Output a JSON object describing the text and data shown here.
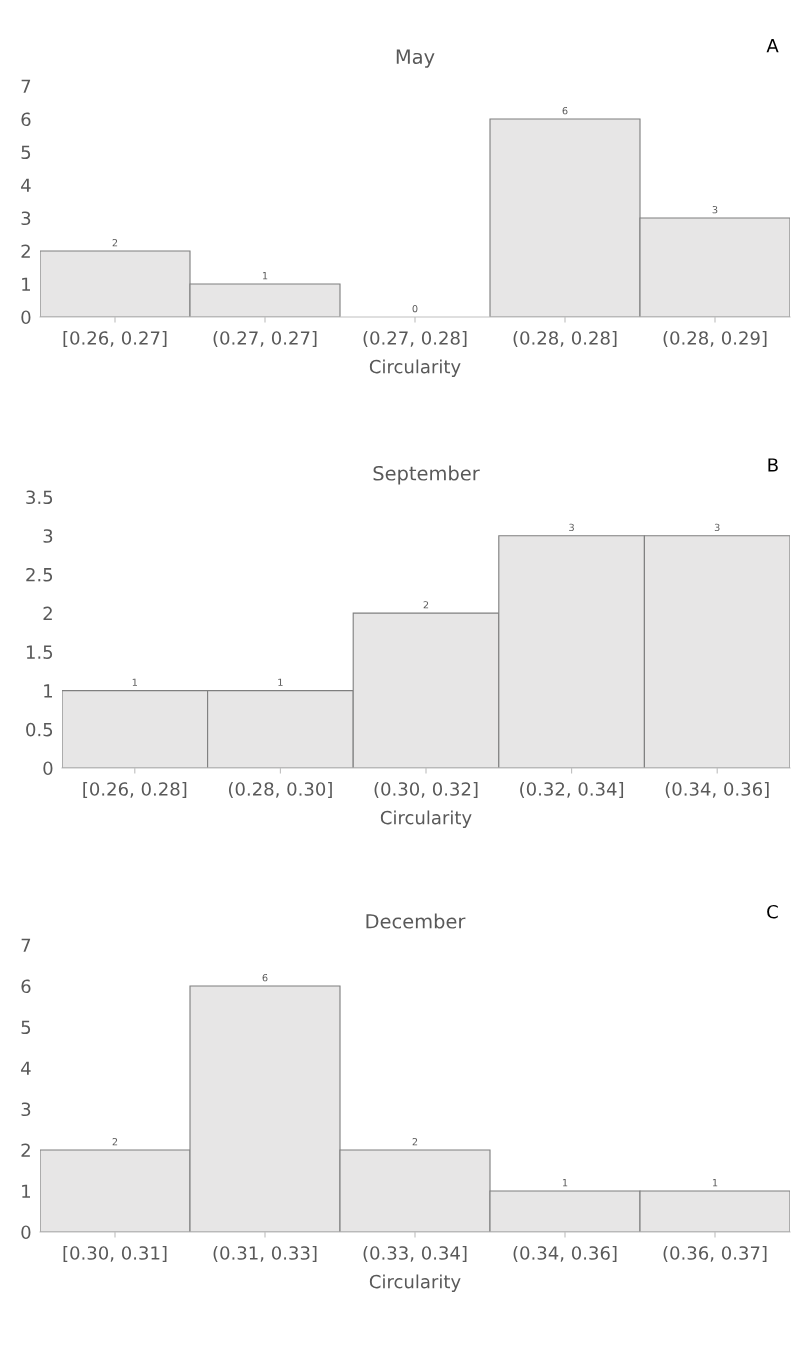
{
  "chart_data": [
    {
      "type": "bar",
      "title": "May",
      "xlabel": "Circularity",
      "annotations": [
        "A"
      ],
      "categories": [
        "[0.26, 0.27]",
        "(0.27, 0.27]",
        "(0.27, 0.28]",
        "(0.28, 0.28]",
        "(0.28, 0.29]"
      ],
      "values": [
        2,
        1,
        0,
        6,
        3
      ],
      "color": "#e7e6e6",
      "ylim": [
        0,
        7
      ],
      "yticks": [
        0,
        1,
        2,
        3,
        4,
        5,
        6,
        7
      ],
      "grid": false,
      "data_labels": true
    },
    {
      "type": "bar",
      "title": "September",
      "xlabel": "Circularity",
      "annotations": [
        "B"
      ],
      "categories": [
        "[0.26, 0.28]",
        "(0.28, 0.30]",
        "(0.30, 0.32]",
        "(0.32, 0.34]",
        "(0.34, 0.36]"
      ],
      "values": [
        1,
        1,
        2,
        3,
        3
      ],
      "color": "#e7e6e6",
      "ylim": [
        0,
        3.5
      ],
      "yticks": [
        0,
        0.5,
        1,
        1.5,
        2,
        2.5,
        3,
        3.5
      ],
      "grid": false,
      "data_labels": true
    },
    {
      "type": "bar",
      "title": "December",
      "xlabel": "Circularity",
      "annotations": [
        "C"
      ],
      "categories": [
        "[0.30, 0.31]",
        "(0.31, 0.33]",
        "(0.33, 0.34]",
        "(0.34, 0.36]",
        "(0.36, 0.37]"
      ],
      "values": [
        2,
        6,
        2,
        1,
        1
      ],
      "color": "#e7e6e6",
      "ylim": [
        0,
        7
      ],
      "yticks": [
        0,
        1,
        2,
        3,
        4,
        5,
        6,
        7
      ],
      "grid": false,
      "data_labels": true
    }
  ]
}
